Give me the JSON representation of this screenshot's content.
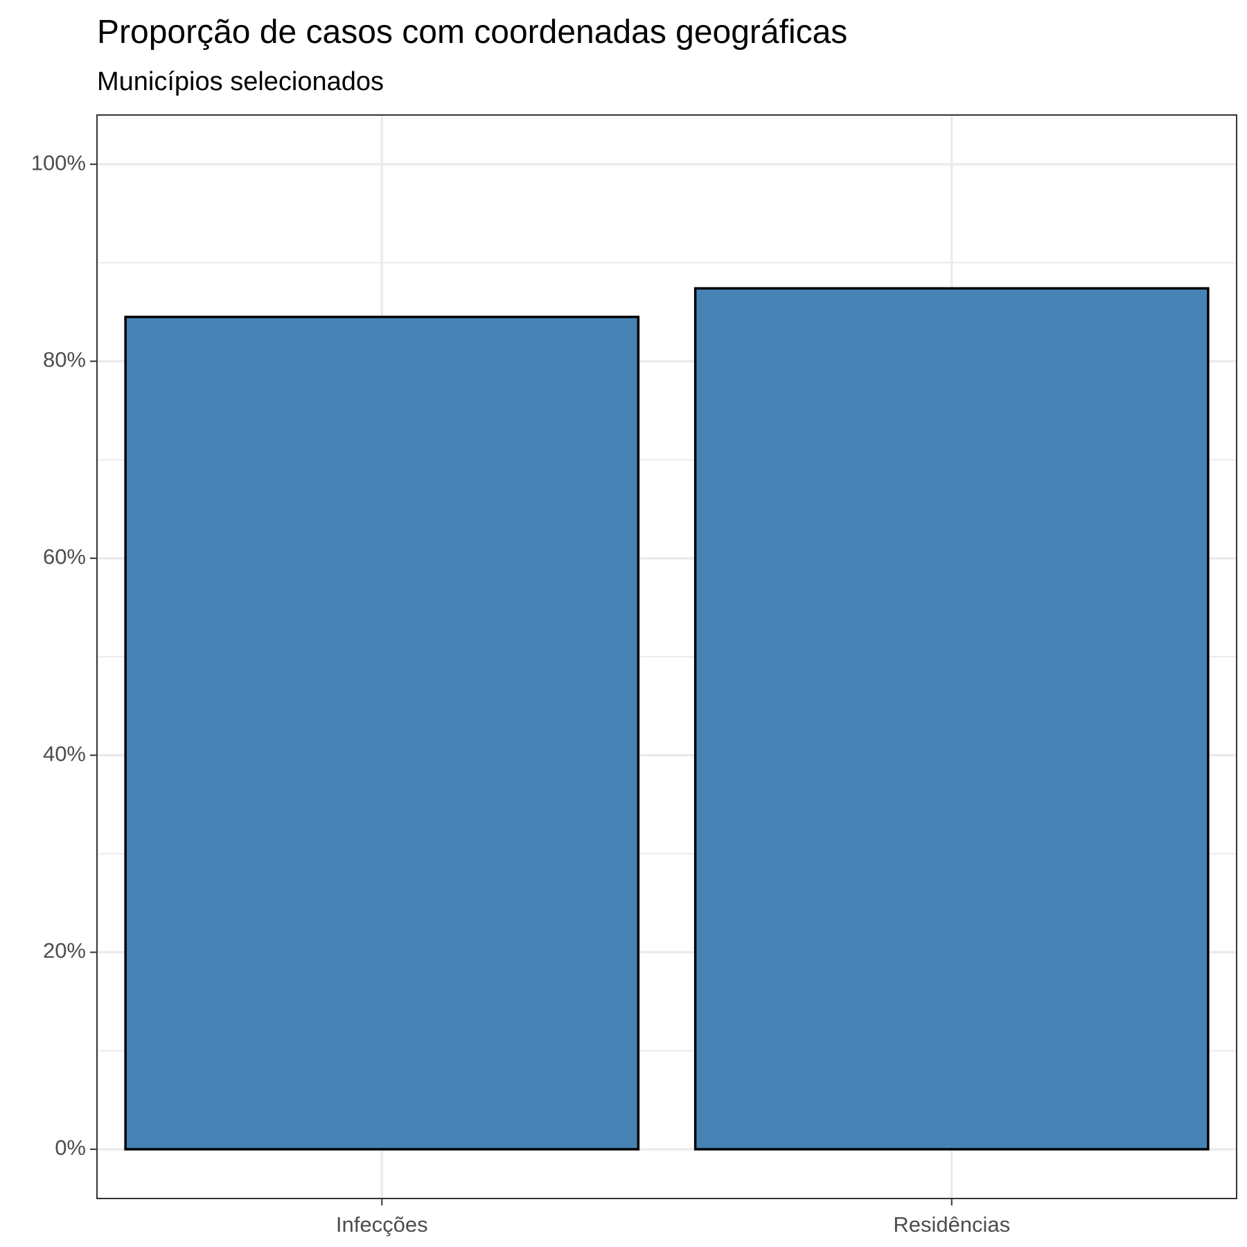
{
  "chart_data": {
    "type": "bar",
    "title": "Proporção de casos com coordenadas geográficas",
    "subtitle": "Municípios selecionados",
    "xlabel": "",
    "ylabel": "",
    "categories": [
      "Infecções",
      "Residências"
    ],
    "values": [
      84.5,
      87.4
    ],
    "ylim": [
      -5,
      105
    ],
    "y_ticks": [
      0,
      20,
      40,
      60,
      80,
      100
    ],
    "y_tick_labels": [
      "0%",
      "20%",
      "40%",
      "60%",
      "80%",
      "100%"
    ],
    "y_minor_ticks": [
      10,
      30,
      50,
      70,
      90
    ],
    "grid": true,
    "legend": "none"
  },
  "colors": {
    "bar_fill": "#4682b4",
    "bar_outline": "#000000",
    "grid": "#ebebeb",
    "panel_border": "#333333",
    "axis_text": "#4d4d4d"
  }
}
